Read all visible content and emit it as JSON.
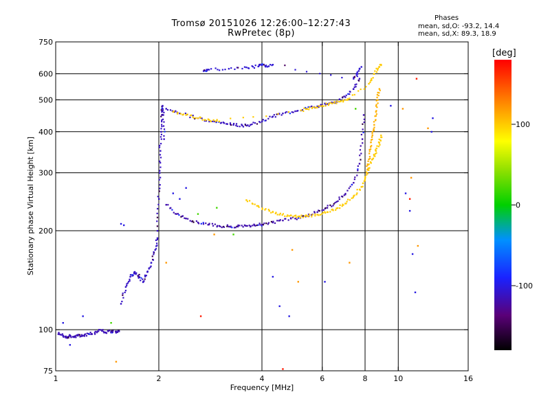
{
  "chart_data": {
    "type": "scatter",
    "title": "Tromsø 20151026 12:26:00–12:27:43",
    "subtitle": "RwPretec (8p)",
    "xlabel": "Frequency [MHz]",
    "ylabel": "Stationary phase Virtual Height [km]",
    "x_scale": "log",
    "y_scale": "log",
    "xlim": [
      1,
      16
    ],
    "ylim": [
      75,
      750
    ],
    "x_ticks": [
      1,
      2,
      4,
      6,
      8,
      10,
      16
    ],
    "x_tick_labels": [
      "1",
      "2",
      "4",
      "6",
      "8",
      "10",
      "16"
    ],
    "y_ticks": [
      75,
      100,
      200,
      300,
      400,
      500,
      600,
      750
    ],
    "y_tick_labels": [
      "75",
      "100",
      "200",
      "300",
      "400",
      "500",
      "600",
      "750"
    ],
    "grid": true,
    "grid_x": [
      2,
      4,
      6,
      8,
      10
    ],
    "grid_y": [
      100,
      200,
      300,
      400,
      500,
      600
    ],
    "stats": {
      "heading": "Phases",
      "o_line": "mean, sd,O: -93.2, 14.4",
      "x_line": "mean, sd,X:  89.3, 18.9"
    },
    "colorbar": {
      "label": "[deg]",
      "range": [
        -180,
        180
      ],
      "ticks": [
        100,
        0,
        -100
      ],
      "tick_labels": [
        "100",
        "0",
        "-100"
      ]
    },
    "traces": [
      {
        "kind": "o",
        "phase": -115,
        "x": [
          1.02,
          1.05,
          1.08,
          1.1,
          1.13,
          1.16,
          1.2,
          1.25,
          1.3,
          1.35,
          1.4,
          1.45,
          1.5,
          1.53
        ],
        "y": [
          98,
          96,
          95,
          96,
          95,
          96,
          96,
          97,
          98,
          100,
          98,
          99,
          98,
          99
        ]
      },
      {
        "kind": "o",
        "phase": -110,
        "x": [
          1.55,
          1.6,
          1.65,
          1.7,
          1.75,
          1.8,
          1.85,
          1.9,
          1.95,
          1.98
        ],
        "y": [
          120,
          135,
          145,
          150,
          145,
          140,
          150,
          160,
          175,
          190
        ]
      },
      {
        "kind": "o",
        "phase": -112,
        "x": [
          1.98,
          2.0,
          2.01,
          2.02,
          2.03,
          2.04,
          2.05,
          2.06,
          2.07
        ],
        "y": [
          200,
          250,
          300,
          350,
          400,
          450,
          480,
          450,
          380
        ]
      },
      {
        "kind": "o",
        "phase": -118,
        "x": [
          2.1,
          2.25,
          2.4,
          2.6,
          2.8,
          3.0,
          3.2,
          3.4,
          3.6,
          3.8,
          4.0,
          4.3,
          4.6,
          5.0,
          5.4,
          5.8,
          6.2,
          6.6,
          7.0,
          7.4,
          7.7,
          7.85,
          7.92
        ],
        "y": [
          240,
          225,
          218,
          212,
          209,
          207,
          206,
          206,
          207,
          208,
          209,
          212,
          215,
          218,
          222,
          228,
          235,
          245,
          258,
          280,
          320,
          380,
          450
        ]
      },
      {
        "kind": "o",
        "phase": -112,
        "x": [
          2.1,
          2.3,
          2.6,
          2.9,
          3.1,
          3.3,
          3.5,
          3.7,
          4.0,
          4.3,
          4.6,
          5.0,
          5.4,
          5.8,
          6.2,
          6.6,
          7.0,
          7.4,
          7.7
        ],
        "y": [
          470,
          455,
          440,
          430,
          425,
          420,
          418,
          420,
          430,
          445,
          455,
          462,
          470,
          478,
          486,
          494,
          510,
          540,
          580
        ]
      },
      {
        "kind": "o",
        "phase": -105,
        "x": [
          2.7,
          2.8,
          3.2,
          3.6,
          3.9,
          4.0,
          4.1,
          4.3,
          7.4,
          7.6,
          7.8
        ],
        "y": [
          612,
          618,
          622,
          628,
          632,
          640,
          632,
          640,
          580,
          600,
          630
        ]
      },
      {
        "kind": "x",
        "phase": 100,
        "x": [
          3.6,
          3.9,
          4.2,
          4.5,
          4.8,
          5.1,
          5.4,
          5.8,
          6.2,
          6.6,
          7.0,
          7.4,
          7.8,
          8.0,
          8.2,
          8.4,
          8.6,
          8.8,
          8.9
        ],
        "y": [
          248,
          238,
          230,
          224,
          222,
          221,
          222,
          224,
          228,
          234,
          242,
          255,
          272,
          290,
          310,
          330,
          350,
          370,
          390
        ]
      },
      {
        "kind": "x",
        "phase": 100,
        "x": [
          2.2,
          2.4,
          2.6,
          2.8,
          3.0,
          5.2,
          5.6,
          6.0,
          6.4,
          6.8,
          7.2,
          8.2,
          8.5,
          8.8,
          8.9
        ],
        "y": [
          460,
          450,
          440,
          435,
          430,
          465,
          472,
          480,
          488,
          496,
          505,
          560,
          600,
          630,
          640
        ]
      },
      {
        "kind": "x",
        "phase": 110,
        "x": [
          8.1,
          8.2,
          8.3,
          8.4,
          8.5,
          8.6,
          8.7,
          8.8
        ],
        "y": [
          300,
          330,
          360,
          390,
          420,
          460,
          500,
          540
        ]
      },
      {
        "kind": "scatter",
        "phase": -100,
        "x": [
          1.05,
          1.1,
          1.2,
          1.55,
          1.58,
          2.2,
          2.3,
          2.4,
          4.3,
          4.5,
          4.8,
          6.1,
          9.5,
          10.5,
          10.8,
          11.0,
          11.2,
          12.5,
          12.6
        ],
        "y": [
          105,
          90,
          110,
          210,
          208,
          260,
          250,
          270,
          145,
          118,
          110,
          140,
          480,
          260,
          230,
          170,
          130,
          400,
          440
        ]
      },
      {
        "kind": "scatter",
        "phase": 120,
        "x": [
          1.5,
          2.1,
          2.9,
          4.9,
          5.1,
          7.2,
          10.3,
          10.9,
          11.4,
          12.2
        ],
        "y": [
          80,
          160,
          195,
          175,
          140,
          160,
          470,
          290,
          180,
          410
        ]
      },
      {
        "kind": "scatter",
        "phase": 170,
        "x": [
          2.65,
          4.6,
          10.8,
          11.3
        ],
        "y": [
          110,
          76,
          250,
          580
        ]
      },
      {
        "kind": "scatter",
        "phase": 20,
        "x": [
          1.45,
          2.6,
          2.95,
          3.3,
          7.5
        ],
        "y": [
          105,
          225,
          235,
          195,
          470
        ]
      }
    ]
  }
}
